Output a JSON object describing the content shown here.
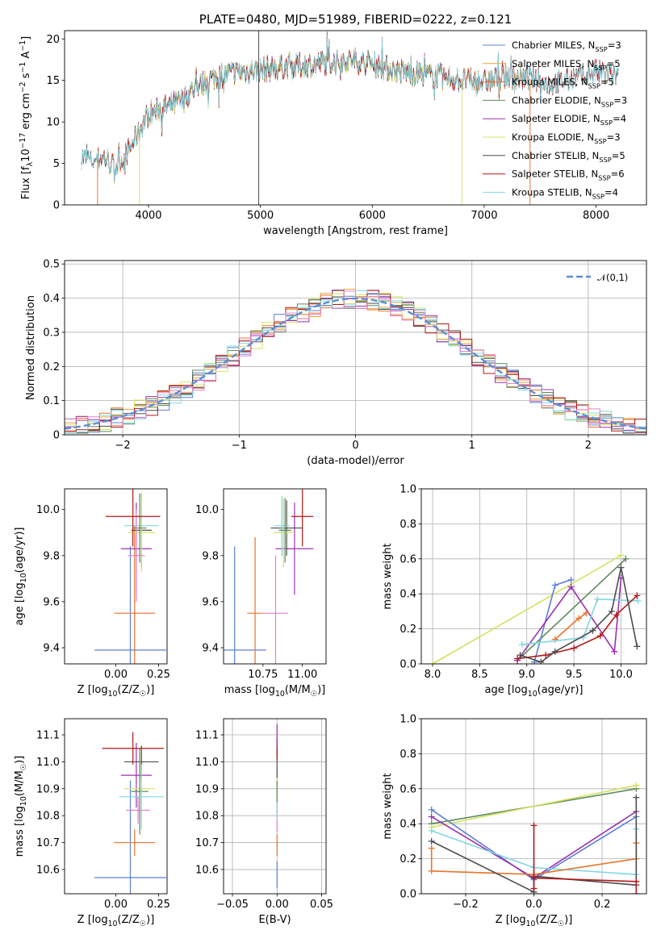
{
  "chart_data": [
    {
      "id": "spectrum",
      "type": "line",
      "title": "PLATE=0480, MJD=51989, FIBERID=0222, z=0.121",
      "xlabel": "wavelength [Angstrom, rest frame]",
      "ylabel": "Flux [f$_\\lambda$10$^{-17}$ erg cm$^{-2}$ s$^{-1}$ A$^{-1}$]",
      "xlim": [
        3250,
        8450
      ],
      "ylim": [
        0,
        21
      ],
      "xticks": [
        4000,
        5000,
        6000,
        7000,
        8000
      ],
      "yticks": [
        0,
        5,
        10,
        15,
        20
      ],
      "grid": false,
      "legend_position": "top-right",
      "continuum": {
        "x": [
          3400,
          3500,
          3600,
          3700,
          3800,
          3900,
          4000,
          4100,
          4200,
          4300,
          4400,
          4600,
          4800,
          5000,
          5200,
          5400,
          5600,
          5800,
          6000,
          6200,
          6400,
          6600,
          6800,
          7000,
          7200,
          7400,
          7600,
          7800,
          8000,
          8200
        ],
        "y": [
          5.8,
          5.2,
          5.8,
          4.6,
          6.0,
          8.5,
          11.0,
          11.5,
          12.0,
          12.5,
          14.0,
          15.5,
          16.0,
          16.3,
          16.6,
          16.8,
          17.2,
          17.5,
          17.0,
          16.2,
          15.8,
          15.5,
          15.0,
          14.8,
          15.5,
          15.2,
          14.5,
          15.2,
          16.0,
          15.5
        ]
      },
      "series": [
        {
          "name": "Chabrier MILES, N$_{SSP}$=3",
          "color": "#5b7fd6",
          "x_range": [
            3550,
            7400
          ]
        },
        {
          "name": "Salpeter MILES, N$_{SSP}$=5",
          "color": "#e8a33c",
          "x_range": [
            3540,
            7400
          ]
        },
        {
          "name": "Kroupa MILES, N$_{SSP}$=5",
          "color": "#e8742c",
          "x_range": [
            3540,
            7400
          ]
        },
        {
          "name": "Chabrier ELODIE, N$_{SSP}$=3",
          "color": "#5c8a5c",
          "x_range": [
            3900,
            6800
          ]
        },
        {
          "name": "Salpeter ELODIE, N$_{SSP}$=4",
          "color": "#9b30b0",
          "x_range": [
            3900,
            6800
          ]
        },
        {
          "name": "Kroupa ELODIE, N$_{SSP}$=3",
          "color": "#d4e260",
          "x_range": [
            3900,
            6800
          ]
        },
        {
          "name": "Chabrier STELIB, N$_{SSP}$=5",
          "color": "#4d4d4d",
          "x_range": [
            3400,
            8200
          ]
        },
        {
          "name": "Salpeter STELIB, N$_{SSP}$=6",
          "color": "#b21818",
          "x_range": [
            3500,
            8200
          ]
        },
        {
          "name": "Kroupa STELIB, N$_{SSP}$=4",
          "color": "#7fd7e0",
          "x_range": [
            3400,
            8200
          ]
        }
      ]
    },
    {
      "id": "residuals",
      "type": "histogram",
      "xlabel": "(data-model)/error",
      "ylabel": "Normed distribution",
      "xlim": [
        -2.5,
        2.5
      ],
      "ylim": [
        0,
        0.51
      ],
      "xticks": [
        -2,
        -1,
        0,
        1,
        2
      ],
      "yticks": [
        0.0,
        0.1,
        0.2,
        0.3,
        0.4,
        0.5
      ],
      "grid": true,
      "legend": "$\\mathcal{N}(0,1)$",
      "legend_position": "top-right",
      "gaussian": {
        "mean": 0,
        "sigma": 1,
        "color": "#5b8fd6"
      },
      "bin_width": 0.1
    },
    {
      "id": "age_vs_Z",
      "type": "errorbar",
      "xlabel": "Z [log$_{10}$(Z/Z$_\\odot$)]",
      "ylabel": "age  [log$_{10}$(age/yr)]",
      "xlim": [
        -0.3,
        0.3
      ],
      "ylim": [
        9.33,
        10.09
      ],
      "xticks": [
        0.0,
        0.25
      ],
      "xticklabels": [
        "0.00",
        "0.25"
      ],
      "yticks": [
        9.4,
        9.6,
        9.8,
        10.0
      ],
      "yticklabels": [
        "9.4",
        "9.6",
        "9.8",
        "10.0"
      ],
      "points": [
        {
          "x": 0.085,
          "xerr": 0.21,
          "y": 9.39,
          "yerr": 0.45,
          "color": "#5b7fd6"
        },
        {
          "x": 0.11,
          "xerr": 0.12,
          "y": 9.55,
          "yerr": 0.38,
          "color": "#e8742c"
        },
        {
          "x": 0.12,
          "xerr": 0.09,
          "y": 9.83,
          "yerr": 0.2,
          "color": "#9b30b0"
        },
        {
          "x": 0.15,
          "xerr": 0.06,
          "y": 9.91,
          "yerr": 0.16,
          "color": "#4d4d4d"
        },
        {
          "x": 0.15,
          "xerr": 0.1,
          "y": 9.93,
          "yerr": 0.12,
          "color": "#7fd7e0"
        },
        {
          "x": 0.15,
          "xerr": 0.08,
          "y": 9.9,
          "yerr": 0.17,
          "color": "#d4e260"
        },
        {
          "x": 0.14,
          "xerr": 0.04,
          "y": 9.92,
          "yerr": 0.15,
          "color": "#5c8a5c"
        },
        {
          "x": 0.12,
          "xerr": 0.05,
          "y": 9.8,
          "yerr": 0.2,
          "color": "#e87fc8"
        },
        {
          "x": 0.1,
          "xerr": 0.16,
          "y": 9.97,
          "yerr": 0.13,
          "color": "#b21818"
        }
      ]
    },
    {
      "id": "age_vs_mass",
      "type": "errorbar",
      "xlabel": "mass [log$_{10}$(M/M$_\\odot$)]",
      "ylabel": "",
      "xlim": [
        10.5,
        11.15
      ],
      "ylim": [
        9.33,
        10.09
      ],
      "xticks": [
        10.75,
        11.0
      ],
      "xticklabels": [
        "10.75",
        "11.00"
      ],
      "yticks": [
        9.4,
        9.6,
        9.8,
        10.0
      ],
      "yticklabels": [
        "9.4",
        "9.6",
        "9.8",
        "10.0"
      ],
      "points": [
        {
          "x": 10.57,
          "xerr": 0.2,
          "y": 9.39,
          "yerr": 0.45,
          "color": "#5b7fd6"
        },
        {
          "x": 10.7,
          "xerr": 0.05,
          "y": 9.55,
          "yerr": 0.33,
          "color": "#e8742c"
        },
        {
          "x": 10.83,
          "xerr": 0.08,
          "y": 9.55,
          "yerr": 0.25,
          "color": "#e87fc8"
        },
        {
          "x": 10.95,
          "xerr": 0.12,
          "y": 9.83,
          "yerr": 0.2,
          "color": "#9b30b0"
        },
        {
          "x": 11.0,
          "xerr": 0.07,
          "y": 9.97,
          "yerr": 0.13,
          "color": "#b21818"
        },
        {
          "x": 10.9,
          "xerr": 0.1,
          "y": 9.92,
          "yerr": 0.12,
          "color": "#4d4d4d"
        },
        {
          "x": 10.88,
          "xerr": 0.06,
          "y": 9.9,
          "yerr": 0.15,
          "color": "#d4e260"
        },
        {
          "x": 10.87,
          "xerr": 0.05,
          "y": 9.93,
          "yerr": 0.13,
          "color": "#7fd7e0"
        },
        {
          "x": 10.89,
          "xerr": 0.04,
          "y": 9.91,
          "yerr": 0.14,
          "color": "#5c8a5c"
        }
      ]
    },
    {
      "id": "weight_vs_age",
      "type": "line",
      "xlabel": "age  [log$_{10}$(age/yr)]",
      "ylabel": "mass weight",
      "xlim": [
        7.88,
        10.27
      ],
      "ylim": [
        0,
        1
      ],
      "xticks": [
        8.0,
        8.5,
        9.0,
        9.5,
        10.0
      ],
      "xticklabels": [
        "8.0",
        "8.5",
        "9.0",
        "9.5",
        "10.0"
      ],
      "yticks": [
        0.0,
        0.2,
        0.4,
        0.6,
        0.8,
        1.0
      ],
      "yticklabels": [
        "0.0",
        "0.2",
        "0.4",
        "0.6",
        "0.8",
        "1.0"
      ],
      "grid": true,
      "series": [
        {
          "color": "#d4e260",
          "x": [
            8.0,
            10.0
          ],
          "y": [
            0.0,
            0.62
          ]
        },
        {
          "color": "#5c8a5c",
          "x": [
            8.9,
            10.05
          ],
          "y": [
            0.02,
            0.6
          ]
        },
        {
          "color": "#5b7fd6",
          "x": [
            9.08,
            9.3,
            9.47
          ],
          "y": [
            0.01,
            0.45,
            0.48
          ]
        },
        {
          "color": "#9b30b0",
          "x": [
            8.9,
            9.47,
            9.93,
            10.0
          ],
          "y": [
            0.02,
            0.44,
            0.07,
            0.49
          ]
        },
        {
          "color": "#e8742c",
          "x": [
            9.3,
            9.55,
            9.63
          ],
          "y": [
            0.14,
            0.26,
            0.29
          ]
        },
        {
          "color": "#7fd7e0",
          "x": [
            8.95,
            9.6,
            9.75,
            10.18
          ],
          "y": [
            0.11,
            0.15,
            0.37,
            0.36
          ]
        },
        {
          "color": "#b21818",
          "x": [
            8.9,
            9.2,
            9.5,
            9.78,
            9.95,
            10.17
          ],
          "y": [
            0.03,
            0.05,
            0.09,
            0.16,
            0.28,
            0.39
          ]
        },
        {
          "color": "#4d4d4d",
          "x": [
            8.93,
            9.15,
            9.3,
            9.7,
            9.9,
            10.0,
            10.17
          ],
          "y": [
            0.05,
            0.01,
            0.07,
            0.19,
            0.3,
            0.55,
            0.1
          ]
        }
      ]
    },
    {
      "id": "mass_vs_Z",
      "type": "errorbar",
      "xlabel": "Z [log$_{10}$(Z/Z$_\\odot$)]",
      "ylabel": "mass [log$_{10}$(M/M$_\\odot$)]",
      "xlim": [
        -0.3,
        0.3
      ],
      "ylim": [
        10.51,
        11.16
      ],
      "xticks": [
        0.0,
        0.25
      ],
      "xticklabels": [
        "0.00",
        "0.25"
      ],
      "yticks": [
        10.6,
        10.7,
        10.8,
        10.9,
        11.0,
        11.1
      ],
      "yticklabels": [
        "10.6",
        "10.7",
        "10.8",
        "10.9",
        "11.0",
        "11.1"
      ],
      "points": [
        {
          "x": 0.085,
          "xerr": 0.21,
          "y": 10.57,
          "yerr": 0.36,
          "color": "#5b7fd6"
        },
        {
          "x": 0.11,
          "xerr": 0.12,
          "y": 10.7,
          "yerr": 0.05,
          "color": "#e8742c"
        },
        {
          "x": 0.12,
          "xerr": 0.09,
          "y": 10.95,
          "yerr": 0.12,
          "color": "#9b30b0"
        },
        {
          "x": 0.13,
          "xerr": 0.07,
          "y": 10.82,
          "yerr": 0.05,
          "color": "#e87fc8"
        },
        {
          "x": 0.15,
          "xerr": 0.1,
          "y": 11.0,
          "yerr": 0.06,
          "color": "#4d4d4d"
        },
        {
          "x": 0.14,
          "xerr": 0.09,
          "y": 10.9,
          "yerr": 0.1,
          "color": "#d4e260"
        },
        {
          "x": 0.14,
          "xerr": 0.05,
          "y": 10.89,
          "yerr": 0.16,
          "color": "#5c8a5c"
        },
        {
          "x": 0.15,
          "xerr": 0.13,
          "y": 10.87,
          "yerr": 0.12,
          "color": "#7fd7e0"
        },
        {
          "x": 0.1,
          "xerr": 0.18,
          "y": 11.05,
          "yerr": 0.06,
          "color": "#b21818"
        }
      ]
    },
    {
      "id": "mass_vs_ebv",
      "type": "errorbar",
      "xlabel": "E(B-V)",
      "ylabel": "",
      "xlim": [
        -0.06,
        0.055
      ],
      "ylim": [
        10.51,
        11.16
      ],
      "xticks": [
        -0.05,
        0.0,
        0.05
      ],
      "xticklabels": [
        "−0.05",
        "0.00",
        "0.05"
      ],
      "yticks": [
        10.6,
        10.7,
        10.8,
        10.9,
        11.0,
        11.1
      ],
      "yticklabels": [
        "10.6",
        "10.7",
        "10.8",
        "10.9",
        "11.0",
        "11.1"
      ],
      "grid": true,
      "points": [
        {
          "x": 0.0,
          "xerr": 0.0,
          "y": 10.58,
          "yerr": 0.05,
          "color": "#5b7fd6"
        },
        {
          "x": 0.0,
          "xerr": 0.0,
          "y": 10.69,
          "yerr": 0.04,
          "color": "#e8742c"
        },
        {
          "x": 0.0,
          "xerr": 0.0,
          "y": 10.8,
          "yerr": 0.06,
          "color": "#e87fc8"
        },
        {
          "x": 0.0,
          "xerr": 0.0,
          "y": 10.87,
          "yerr": 0.08,
          "color": "#7fd7e0"
        },
        {
          "x": 0.0,
          "xerr": 0.0,
          "y": 10.9,
          "yerr": 0.04,
          "color": "#d4e260"
        },
        {
          "x": 0.0,
          "xerr": 0.0,
          "y": 10.89,
          "yerr": 0.04,
          "color": "#5c8a5c"
        },
        {
          "x": 0.0,
          "xerr": 0.0,
          "y": 11.0,
          "yerr": 0.06,
          "color": "#4d4d4d"
        },
        {
          "x": 0.0,
          "xerr": 0.0,
          "y": 11.05,
          "yerr": 0.04,
          "color": "#b21818"
        },
        {
          "x": 0.0,
          "xerr": 0.0,
          "y": 11.1,
          "yerr": 0.04,
          "color": "#9b30b0"
        }
      ]
    },
    {
      "id": "weight_vs_Z",
      "type": "line",
      "xlabel": "Z [log$_{10}$(Z/Z$_\\odot$)]",
      "ylabel": "mass weight",
      "xlim": [
        -0.33,
        0.33
      ],
      "ylim": [
        0,
        1
      ],
      "xticks": [
        -0.2,
        0.0,
        0.2
      ],
      "xticklabels": [
        "−0.2",
        "0.0",
        "0.2"
      ],
      "yticks": [
        0.0,
        0.2,
        0.4,
        0.6,
        0.8,
        1.0
      ],
      "yticklabels": [
        "0.0",
        "0.2",
        "0.4",
        "0.6",
        "0.8",
        "1.0"
      ],
      "grid": true,
      "series": [
        {
          "color": "#5c8a5c",
          "x": [
            -0.3,
            0.3
          ],
          "y": [
            0.4,
            0.6
          ]
        },
        {
          "color": "#d4e260",
          "x": [
            -0.3,
            0.3
          ],
          "y": [
            0.38,
            0.62
          ]
        },
        {
          "color": "#5b7fd6",
          "x": [
            -0.3,
            0.0,
            0.3
          ],
          "y": [
            0.48,
            0.08,
            0.44
          ]
        },
        {
          "color": "#9b30b0",
          "x": [
            -0.3,
            0.0,
            0.3
          ],
          "y": [
            0.44,
            0.09,
            0.47
          ]
        },
        {
          "color": "#7fd7e0",
          "x": [
            -0.3,
            0.0,
            0.3,
            0.3
          ],
          "y": [
            0.36,
            0.15,
            0.11,
            0.37
          ]
        },
        {
          "color": "#e8742c",
          "x": [
            -0.3,
            -0.3,
            0.0,
            0.3,
            0.3
          ],
          "y": [
            0.26,
            0.13,
            0.11,
            0.2,
            0.29
          ]
        },
        {
          "color": "#4d4d4d",
          "x": [
            -0.3,
            0.0,
            0.0,
            0.3,
            0.3
          ],
          "y": [
            0.3,
            0.01,
            0.1,
            0.05,
            0.55
          ]
        },
        {
          "color": "#b21818",
          "x": [
            0.0,
            0.0,
            0.0,
            0.3,
            0.3
          ],
          "y": [
            0.39,
            0.03,
            0.09,
            0.07,
            0.0
          ]
        }
      ]
    }
  ]
}
